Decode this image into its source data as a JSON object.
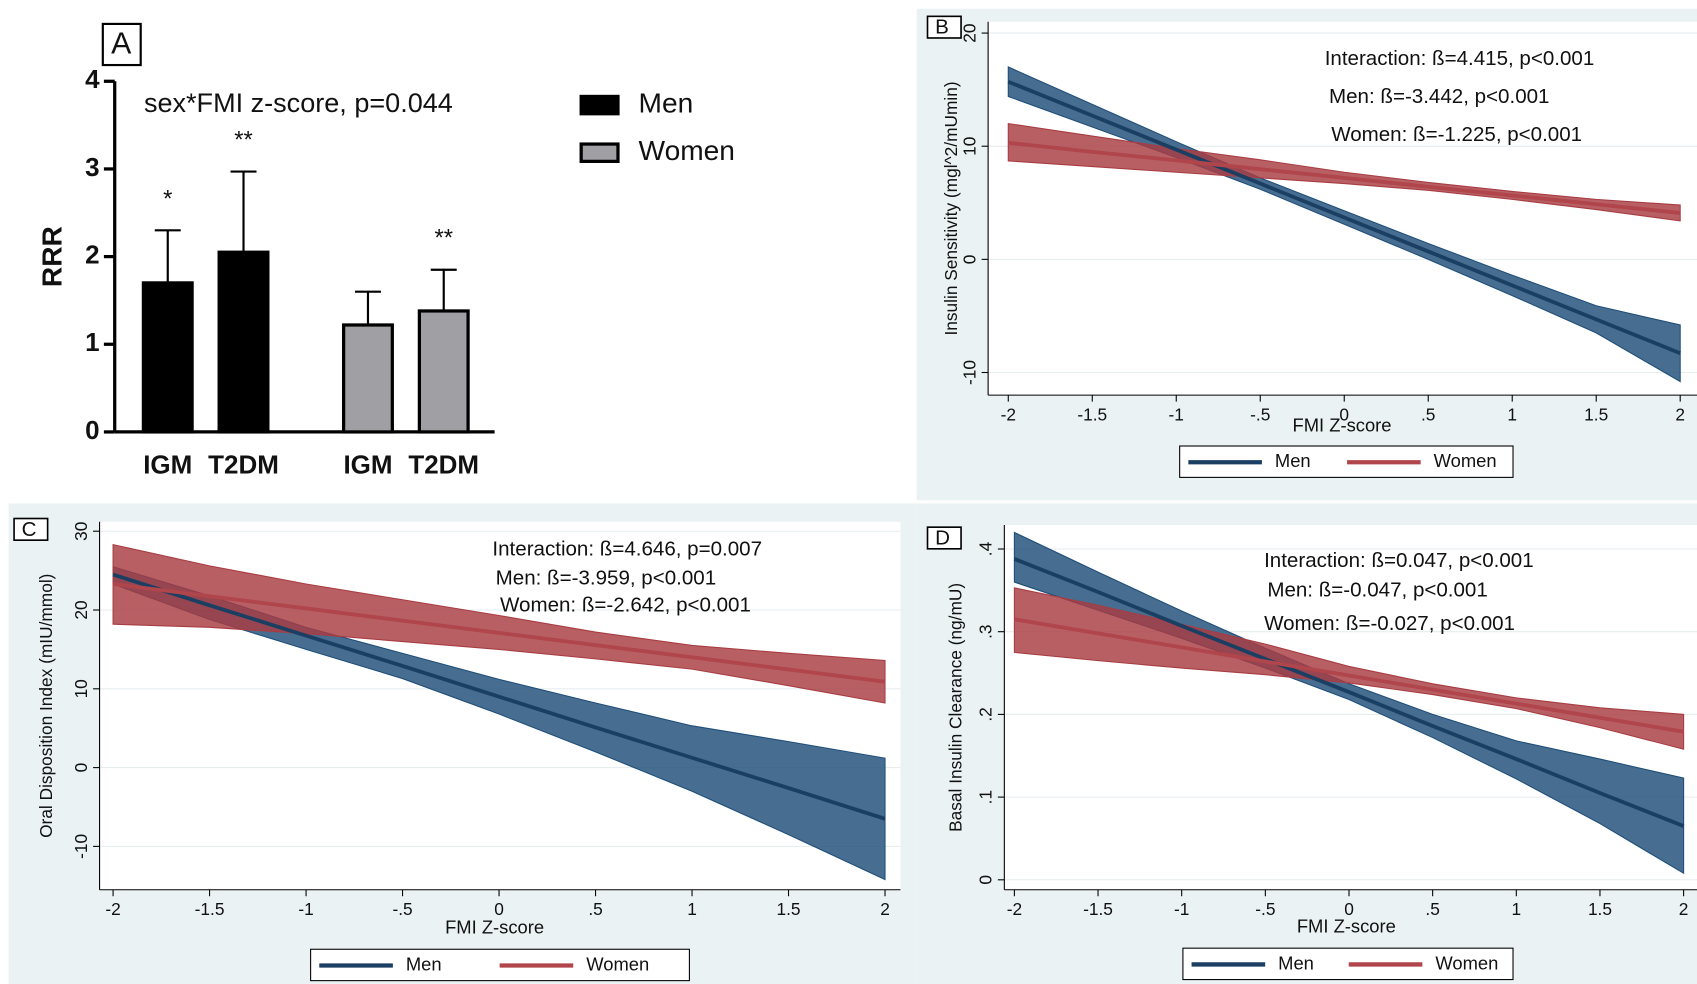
{
  "chart_data": [
    {
      "type": "bar",
      "panel": "A",
      "annotation": "sex*FMI z-score, p=0.044",
      "ylabel": "RRR",
      "ylim": [
        0,
        4
      ],
      "yticks": [
        0,
        1,
        2,
        3,
        4
      ],
      "categories": [
        "IGM",
        "T2DM"
      ],
      "series": [
        {
          "name": "Men",
          "color": "#000000",
          "values": [
            1.7,
            2.05
          ],
          "errors": [
            0.6,
            0.92
          ],
          "significance": [
            "*",
            "**"
          ]
        },
        {
          "name": "Women",
          "color": "#a0a0a4",
          "values": [
            1.22,
            1.38
          ],
          "errors": [
            0.38,
            0.47
          ],
          "significance": [
            null,
            "**"
          ]
        }
      ]
    },
    {
      "type": "line",
      "panel": "B",
      "xlabel": "FMI Z-score",
      "ylabel": "Insulin Sensitivity (mgl^2/mUmin)",
      "annotations": [
        "Interaction: ß=4.415, p<0.001",
        "Men: ß=-3.442, p<0.001",
        "Women: ß=-1.225, p<0.001"
      ],
      "xlim": [
        -2.12,
        2.1
      ],
      "ylim": [
        -12,
        21
      ],
      "xticks": [
        -2,
        -1.5,
        -1,
        {
          "value": -0.5,
          "label": "-.5"
        },
        0,
        {
          "value": 0.5,
          "label": ".5"
        },
        1,
        1.5,
        2
      ],
      "yticks": [
        -10,
        0,
        10,
        20
      ],
      "x": [
        -2,
        -1.5,
        -1,
        -0.5,
        0,
        0.5,
        1,
        1.5,
        2
      ],
      "series": [
        {
          "name": "Men",
          "color": "#1f4e79",
          "values": [
            15.7,
            12.7,
            9.7,
            6.7,
            3.7,
            0.7,
            -2.3,
            -5.3,
            -8.3
          ],
          "lower": [
            14.4,
            11.7,
            9.0,
            6.2,
            3.1,
            0.0,
            -3.2,
            -6.5,
            -10.8
          ],
          "upper": [
            17.0,
            13.7,
            10.4,
            7.2,
            4.3,
            1.4,
            -1.4,
            -4.1,
            -5.8
          ]
        },
        {
          "name": "Women",
          "color": "#a83c42",
          "values": [
            10.3,
            9.5,
            8.75,
            7.97,
            7.2,
            6.42,
            5.65,
            4.87,
            4.1
          ],
          "lower": [
            8.7,
            8.2,
            7.7,
            7.2,
            6.7,
            6.1,
            5.3,
            4.4,
            3.4
          ],
          "upper": [
            12.0,
            10.9,
            9.8,
            8.8,
            7.7,
            6.8,
            6.0,
            5.3,
            4.8
          ]
        }
      ]
    },
    {
      "type": "line",
      "panel": "C",
      "xlabel": "FMI Z-score",
      "ylabel": "Oral Disposition Index (mIU/mmol)",
      "annotations": [
        "Interaction: ß=4.646, p=0.007",
        "Men: ß=-3.959, p<0.001",
        "Women: ß=-2.642, p<0.001"
      ],
      "xlim": [
        -2.07,
        2.08
      ],
      "ylim": [
        -15.5,
        31.2
      ],
      "xticks": [
        -2,
        -1.5,
        -1,
        {
          "value": -0.5,
          "label": "-.5"
        },
        0,
        {
          "value": 0.5,
          "label": ".5"
        },
        1,
        1.5,
        2
      ],
      "yticks": [
        -10,
        0,
        10,
        20,
        30
      ],
      "x": [
        -2,
        -1.5,
        -1,
        -0.5,
        0,
        0.5,
        1,
        1.5,
        2
      ],
      "series": [
        {
          "name": "Men",
          "color": "#1f4e79",
          "values": [
            24.5,
            20.6,
            16.75,
            12.9,
            9,
            5.1,
            1.25,
            -2.6,
            -6.5
          ],
          "lower": [
            23.3,
            18.8,
            15.0,
            11.3,
            6.8,
            2.0,
            -3.0,
            -8.5,
            -14.2
          ],
          "upper": [
            25.5,
            21.8,
            17.8,
            14.5,
            11.2,
            8.2,
            5.3,
            3.3,
            1.2
          ]
        },
        {
          "name": "Women",
          "color": "#a83c42",
          "values": [
            23.3,
            21.75,
            20.2,
            18.65,
            17.1,
            15.55,
            14,
            12.45,
            10.9
          ],
          "lower": [
            18.2,
            17.8,
            17.0,
            16.0,
            15.0,
            13.8,
            12.5,
            10.4,
            8.2
          ],
          "upper": [
            28.3,
            25.6,
            23.3,
            21.3,
            19.3,
            17.2,
            15.5,
            14.5,
            13.6
          ]
        }
      ]
    },
    {
      "type": "line",
      "panel": "D",
      "xlabel": "FMI Z-score",
      "ylabel": "Basal Insulin Clearance (ng/mU)",
      "annotations": [
        "Interaction: ß=0.047, p<0.001",
        "Men: ß=-0.047, p<0.001",
        "Women: ß=-0.027, p<0.001"
      ],
      "xlim": [
        -2.06,
        2.08
      ],
      "ylim": [
        -0.012,
        0.429
      ],
      "xticks": [
        -2,
        -1.5,
        -1,
        {
          "value": -0.5,
          "label": "-.5"
        },
        0,
        {
          "value": 0.5,
          "label": ".5"
        },
        1,
        1.5,
        2
      ],
      "yticks": [
        0,
        {
          "value": 0.1,
          "label": ".1"
        },
        {
          "value": 0.2,
          "label": ".2"
        },
        {
          "value": 0.3,
          "label": ".3"
        },
        {
          "value": 0.4,
          "label": ".4"
        }
      ],
      "x": [
        -2,
        -1.5,
        -1,
        -0.5,
        0,
        0.5,
        1,
        1.5,
        2
      ],
      "series": [
        {
          "name": "Men",
          "color": "#1f4e79",
          "values": [
            0.388,
            0.348,
            0.307,
            0.267,
            0.227,
            0.186,
            0.146,
            0.105,
            0.065
          ],
          "lower": [
            0.36,
            0.326,
            0.292,
            0.256,
            0.218,
            0.172,
            0.122,
            0.068,
            0.008
          ],
          "upper": [
            0.42,
            0.372,
            0.325,
            0.28,
            0.237,
            0.2,
            0.168,
            0.146,
            0.123
          ]
        },
        {
          "name": "Women",
          "color": "#a83c42",
          "values": [
            0.315,
            0.298,
            0.281,
            0.264,
            0.247,
            0.23,
            0.213,
            0.196,
            0.179
          ],
          "lower": [
            0.275,
            0.265,
            0.256,
            0.248,
            0.238,
            0.224,
            0.207,
            0.184,
            0.158
          ],
          "upper": [
            0.353,
            0.332,
            0.309,
            0.285,
            0.258,
            0.237,
            0.22,
            0.208,
            0.2
          ]
        }
      ]
    }
  ]
}
